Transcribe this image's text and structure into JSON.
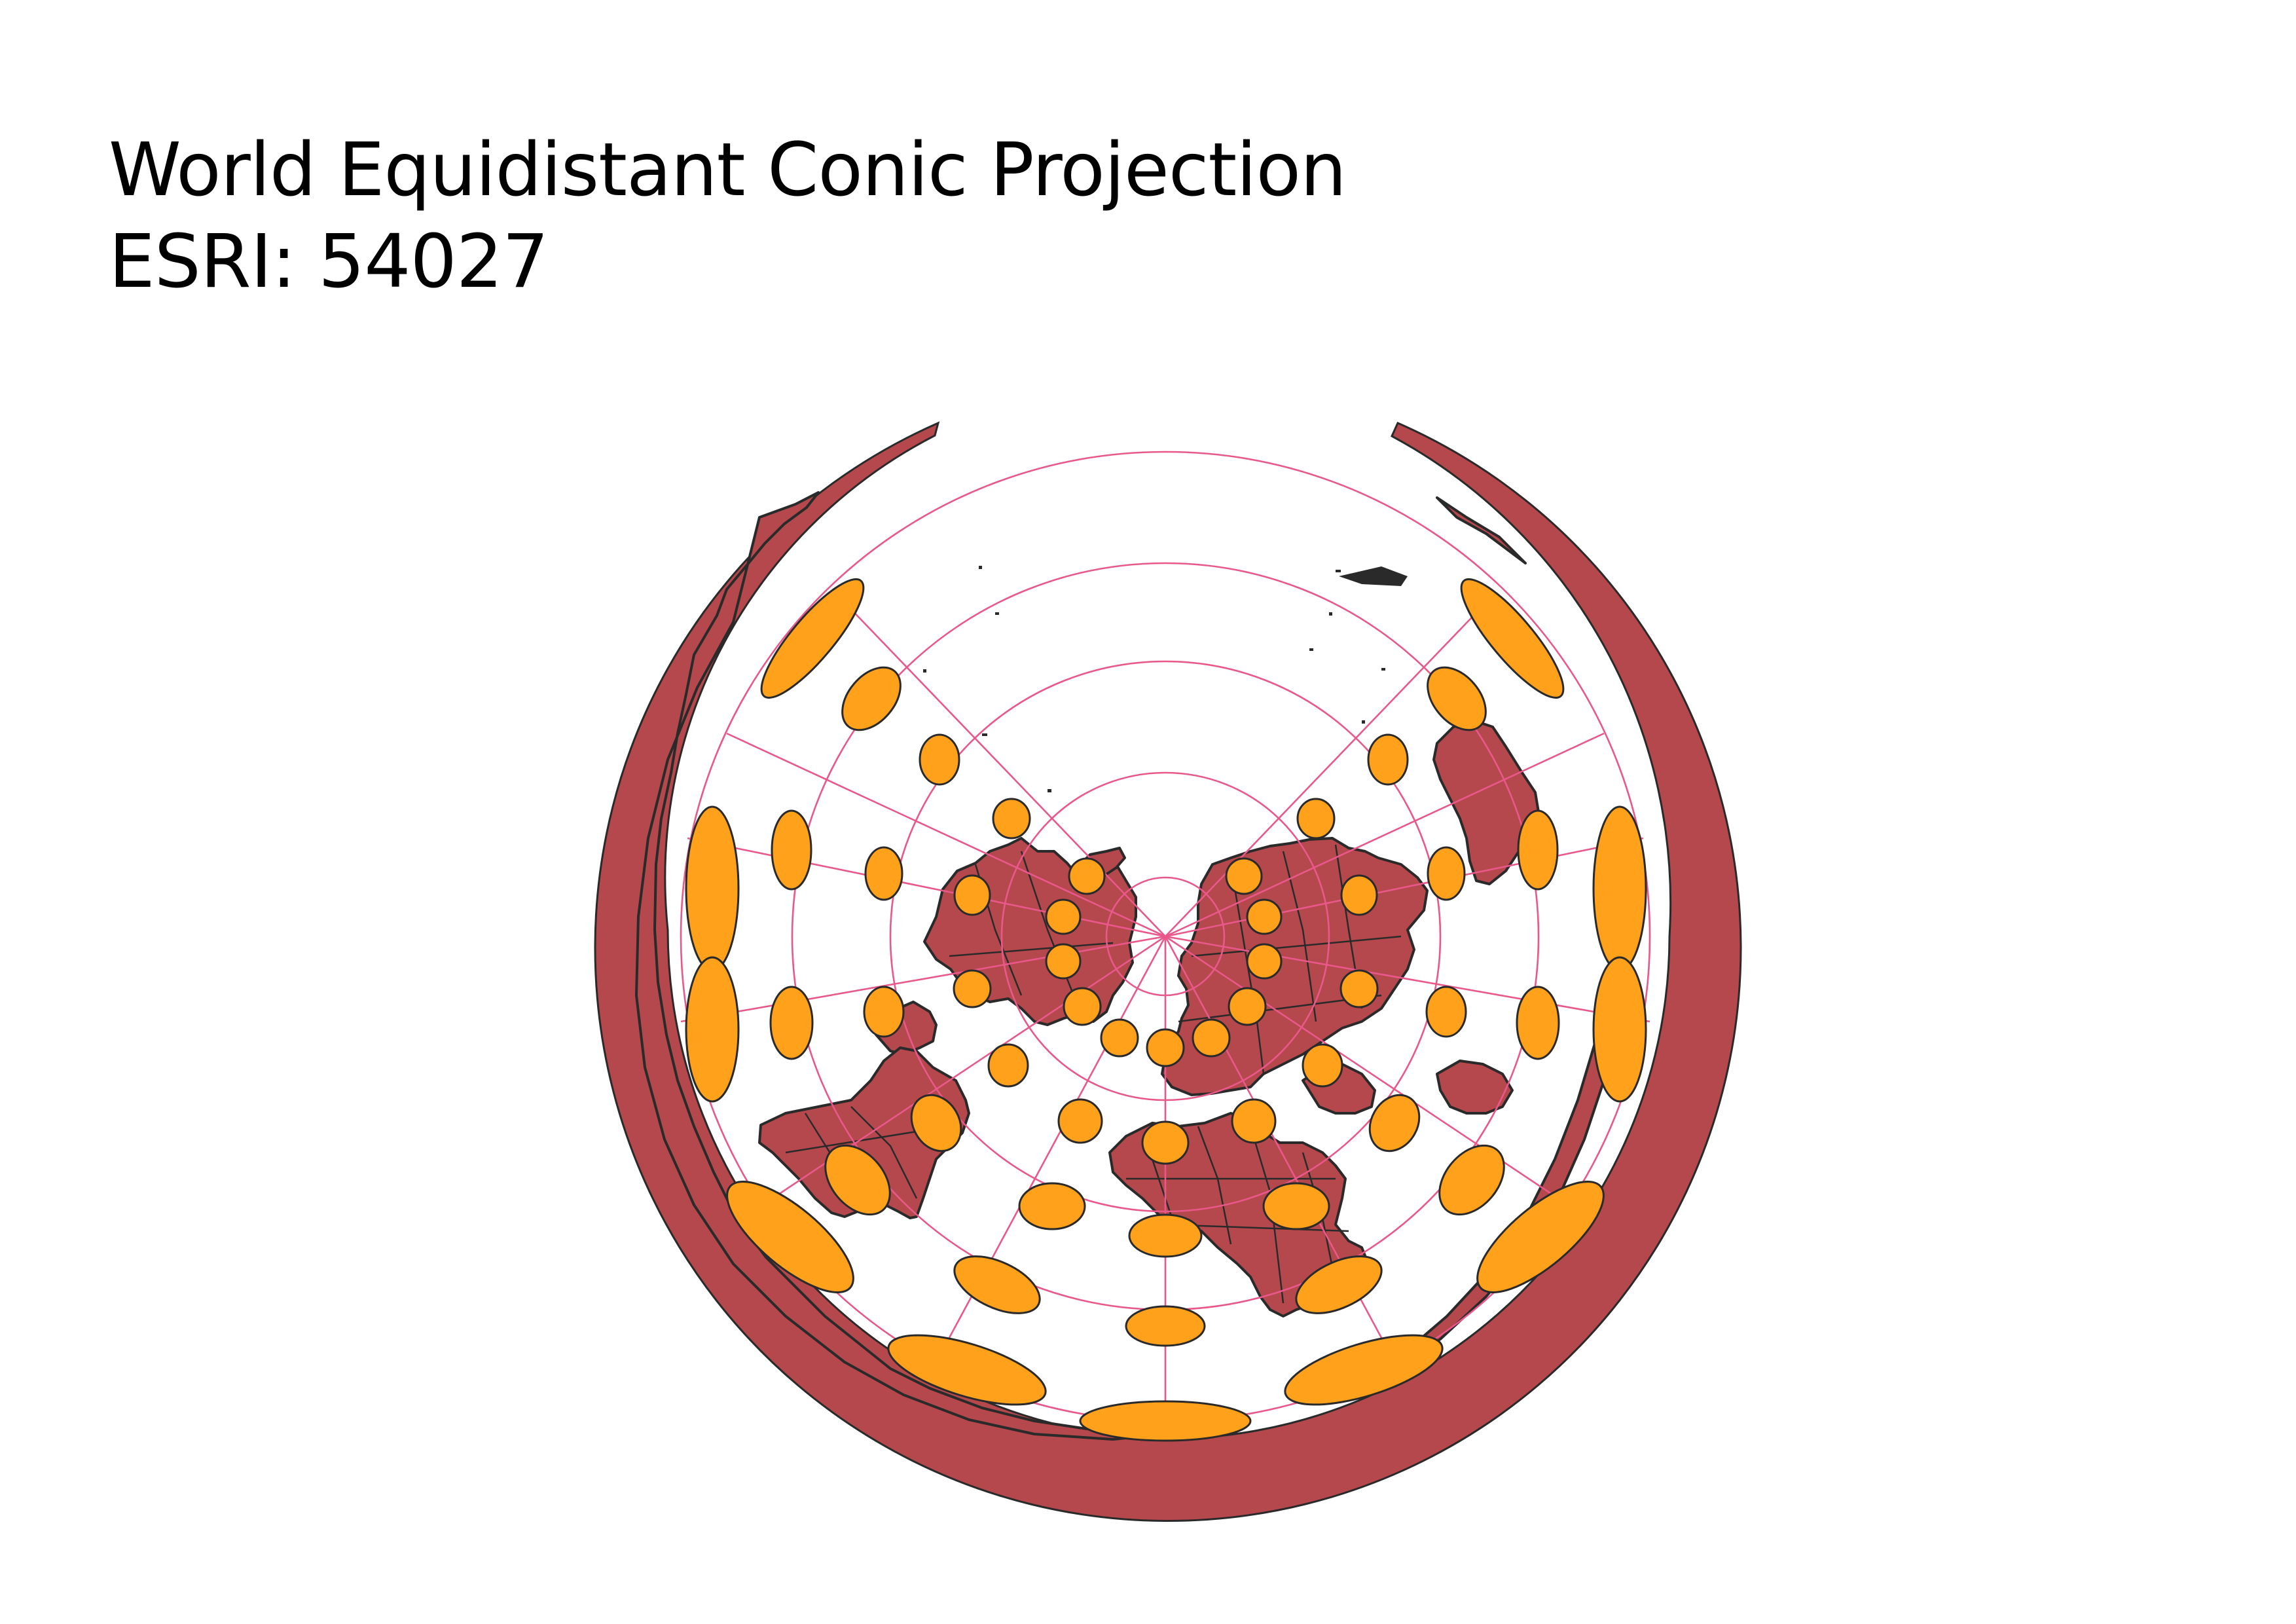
{
  "title": {
    "line1": "World Equidistant Conic Projection",
    "line2": "ESRI: 54027"
  },
  "colors": {
    "land": "#b5484c",
    "outline": "#2a2a2a",
    "graticule": "#e8588a",
    "tissot": "#ffa11a",
    "background": "#ffffff"
  },
  "map": {
    "projection": "Equidistant Conic",
    "crs": "ESRI:54027",
    "layers": [
      "countries",
      "graticule",
      "tissot-indicatrix"
    ]
  }
}
